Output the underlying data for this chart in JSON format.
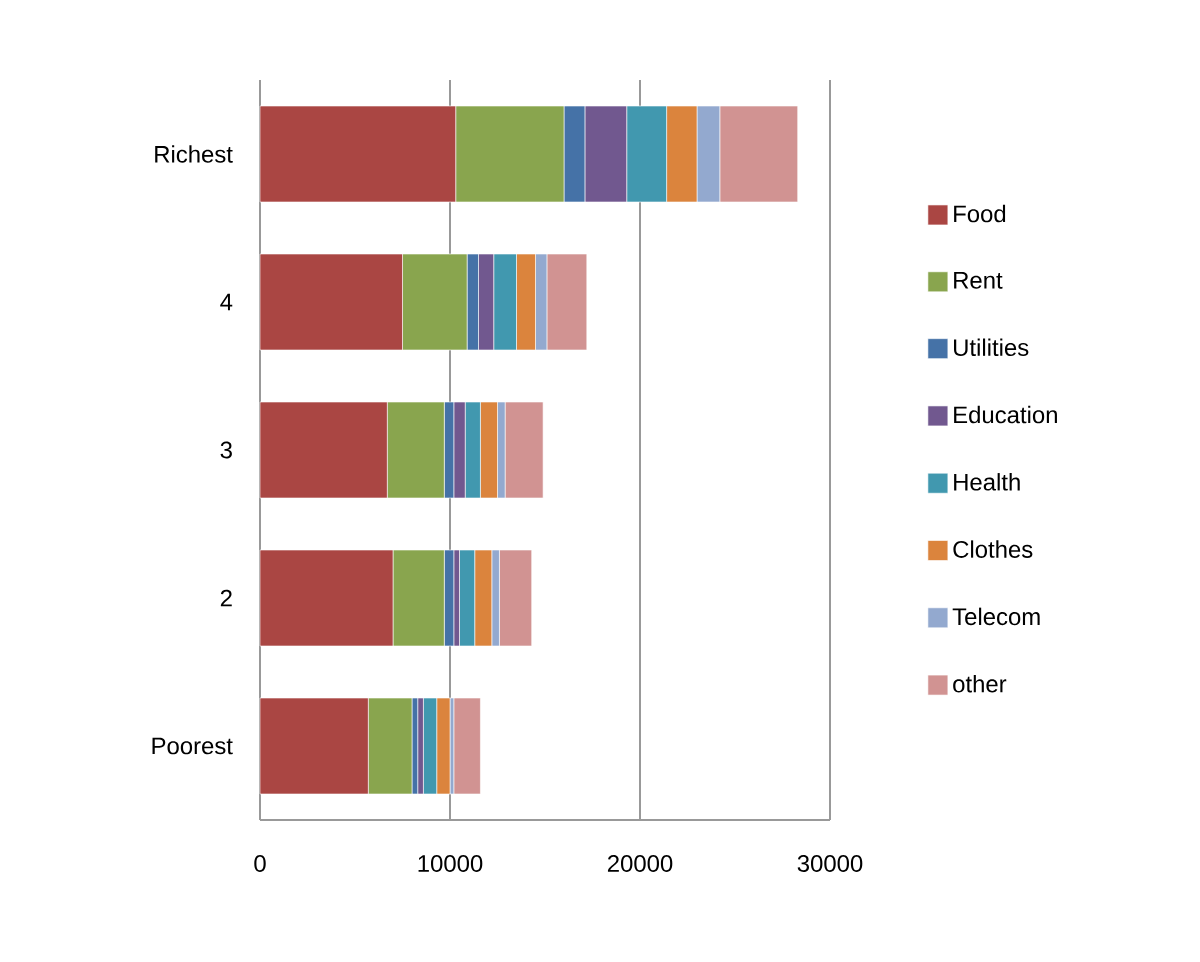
{
  "chart_data": {
    "type": "bar",
    "orientation": "horizontal",
    "stacked": true,
    "categories": [
      "Richest",
      "4",
      "3",
      "2",
      "Poorest"
    ],
    "series": [
      {
        "name": "Food",
        "color": "#aa4643",
        "values": [
          10300,
          7500,
          6700,
          7000,
          5700
        ]
      },
      {
        "name": "Rent",
        "color": "#89a54e",
        "values": [
          5700,
          3400,
          3000,
          2700,
          2300
        ]
      },
      {
        "name": "Utilities",
        "color": "#4572a7",
        "values": [
          1100,
          600,
          500,
          500,
          300
        ]
      },
      {
        "name": "Education",
        "color": "#71588f",
        "values": [
          2200,
          800,
          600,
          300,
          300
        ]
      },
      {
        "name": "Health",
        "color": "#4198af",
        "values": [
          2100,
          1200,
          800,
          800,
          700
        ]
      },
      {
        "name": "Clothes",
        "color": "#db843d",
        "values": [
          1600,
          1000,
          900,
          900,
          700
        ]
      },
      {
        "name": "Telecom",
        "color": "#93a9cf",
        "values": [
          1200,
          600,
          400,
          400,
          200
        ]
      },
      {
        "name": "other",
        "color": "#d19392",
        "values": [
          4100,
          2100,
          2000,
          1700,
          1400
        ]
      }
    ],
    "xlim": [
      0,
      30000
    ],
    "xticks": [
      0,
      10000,
      20000,
      30000
    ],
    "grid": "x",
    "legend": "right"
  }
}
